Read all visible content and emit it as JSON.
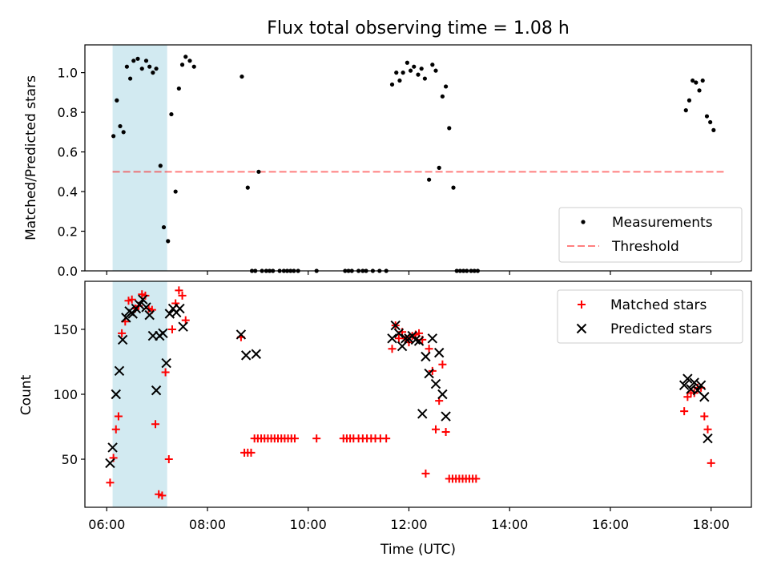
{
  "chart_data": [
    {
      "type": "scatter",
      "title": "Flux total observing time = 1.08 h",
      "xlabel": "",
      "ylabel": "Matched/Predicted stars",
      "xlim": [
        "05:34",
        "18:48"
      ],
      "ylim": [
        0,
        1.14
      ],
      "yticks": [
        "0.0",
        "0.2",
        "0.4",
        "0.6",
        "0.8",
        "1.0"
      ],
      "grid": false,
      "legend_position": "lower-right",
      "highlight_span": {
        "x": [
          "06:07",
          "07:12"
        ],
        "color": "#add8e6"
      },
      "threshold": {
        "name": "Threshold",
        "y": 0.5,
        "x": [
          "06:07",
          "18:15"
        ],
        "color": "#ff0000",
        "style": "dashed"
      },
      "series": [
        {
          "name": "Measurements",
          "color": "#000000",
          "marker": "dot",
          "points": [
            [
              "06:08",
              0.68
            ],
            [
              "06:12",
              0.86
            ],
            [
              "06:16",
              0.73
            ],
            [
              "06:20",
              0.7
            ],
            [
              "06:24",
              1.03
            ],
            [
              "06:28",
              0.97
            ],
            [
              "06:32",
              1.06
            ],
            [
              "06:37",
              1.07
            ],
            [
              "06:42",
              1.02
            ],
            [
              "06:47",
              1.06
            ],
            [
              "06:51",
              1.03
            ],
            [
              "06:55",
              1.0
            ],
            [
              "06:59",
              1.02
            ],
            [
              "07:04",
              0.53
            ],
            [
              "07:08",
              0.22
            ],
            [
              "07:13",
              0.15
            ],
            [
              "07:17",
              0.79
            ],
            [
              "07:22",
              0.4
            ],
            [
              "07:26",
              0.92
            ],
            [
              "07:30",
              1.04
            ],
            [
              "07:34",
              1.08
            ],
            [
              "07:39",
              1.06
            ],
            [
              "07:44",
              1.03
            ],
            [
              "08:41",
              0.98
            ],
            [
              "08:48",
              0.42
            ],
            [
              "08:53",
              0.0
            ],
            [
              "08:57",
              0.0
            ],
            [
              "09:01",
              0.5
            ],
            [
              "09:05",
              0.0
            ],
            [
              "09:10",
              0.0
            ],
            [
              "09:14",
              0.0
            ],
            [
              "09:18",
              0.0
            ],
            [
              "09:26",
              0.0
            ],
            [
              "09:31",
              0.0
            ],
            [
              "09:35",
              0.0
            ],
            [
              "09:39",
              0.0
            ],
            [
              "09:43",
              0.0
            ],
            [
              "09:48",
              0.0
            ],
            [
              "10:10",
              0.0
            ],
            [
              "10:44",
              0.0
            ],
            [
              "10:48",
              0.0
            ],
            [
              "10:52",
              0.0
            ],
            [
              "11:00",
              0.0
            ],
            [
              "11:05",
              0.0
            ],
            [
              "11:09",
              0.0
            ],
            [
              "11:17",
              0.0
            ],
            [
              "11:25",
              0.0
            ],
            [
              "11:33",
              0.0
            ],
            [
              "11:40",
              0.94
            ],
            [
              "11:45",
              1.0
            ],
            [
              "11:49",
              0.96
            ],
            [
              "11:53",
              1.0
            ],
            [
              "11:58",
              1.05
            ],
            [
              "12:02",
              1.01
            ],
            [
              "12:06",
              1.03
            ],
            [
              "12:11",
              0.99
            ],
            [
              "12:15",
              1.02
            ],
            [
              "12:19",
              0.97
            ],
            [
              "12:24",
              0.46
            ],
            [
              "12:28",
              1.04
            ],
            [
              "12:32",
              1.01
            ],
            [
              "12:36",
              0.52
            ],
            [
              "12:40",
              0.88
            ],
            [
              "12:44",
              0.93
            ],
            [
              "12:48",
              0.72
            ],
            [
              "12:53",
              0.42
            ],
            [
              "12:57",
              0.0
            ],
            [
              "13:01",
              0.0
            ],
            [
              "13:05",
              0.0
            ],
            [
              "13:09",
              0.0
            ],
            [
              "13:14",
              0.0
            ],
            [
              "13:18",
              0.0
            ],
            [
              "13:22",
              0.0
            ],
            [
              "17:30",
              0.81
            ],
            [
              "17:34",
              0.86
            ],
            [
              "17:38",
              0.96
            ],
            [
              "17:42",
              0.95
            ],
            [
              "17:46",
              0.91
            ],
            [
              "17:50",
              0.96
            ],
            [
              "17:55",
              0.78
            ],
            [
              "17:59",
              0.75
            ],
            [
              "18:03",
              0.71
            ]
          ]
        }
      ],
      "legend": [
        "Measurements",
        "Threshold"
      ]
    },
    {
      "type": "scatter",
      "title": "",
      "xlabel": "Time (UTC)",
      "ylabel": "Count",
      "xlim": [
        "05:34",
        "18:48"
      ],
      "ylim": [
        13,
        187
      ],
      "xticks": [
        "06:00",
        "08:00",
        "10:00",
        "12:00",
        "14:00",
        "16:00",
        "18:00"
      ],
      "yticks": [
        "50",
        "100",
        "150"
      ],
      "grid": false,
      "legend_position": "top-right",
      "highlight_span": {
        "x": [
          "06:07",
          "07:12"
        ],
        "color": "#add8e6"
      },
      "series": [
        {
          "name": "Matched stars",
          "color": "#ff0000",
          "marker": "plus",
          "points": [
            [
              "06:04",
              32
            ],
            [
              "06:08",
              51
            ],
            [
              "06:11",
              73
            ],
            [
              "06:14",
              83
            ],
            [
              "06:18",
              147
            ],
            [
              "06:22",
              156
            ],
            [
              "06:26",
              172
            ],
            [
              "06:30",
              173
            ],
            [
              "06:34",
              166
            ],
            [
              "06:38",
              168
            ],
            [
              "06:42",
              177
            ],
            [
              "06:46",
              176
            ],
            [
              "06:50",
              166
            ],
            [
              "06:54",
              165
            ],
            [
              "06:58",
              77
            ],
            [
              "07:02",
              23
            ],
            [
              "07:06",
              22
            ],
            [
              "07:10",
              117
            ],
            [
              "07:14",
              50
            ],
            [
              "07:18",
              150
            ],
            [
              "07:22",
              170
            ],
            [
              "07:26",
              180
            ],
            [
              "07:30",
              176
            ],
            [
              "07:34",
              157
            ],
            [
              "08:40",
              144
            ],
            [
              "08:44",
              55
            ],
            [
              "08:48",
              55
            ],
            [
              "08:52",
              55
            ],
            [
              "08:56",
              66
            ],
            [
              "09:00",
              66
            ],
            [
              "09:04",
              66
            ],
            [
              "09:08",
              66
            ],
            [
              "09:12",
              66
            ],
            [
              "09:16",
              66
            ],
            [
              "09:20",
              66
            ],
            [
              "09:24",
              66
            ],
            [
              "09:28",
              66
            ],
            [
              "09:32",
              66
            ],
            [
              "09:36",
              66
            ],
            [
              "09:40",
              66
            ],
            [
              "09:44",
              66
            ],
            [
              "10:10",
              66
            ],
            [
              "10:42",
              66
            ],
            [
              "10:46",
              66
            ],
            [
              "10:50",
              66
            ],
            [
              "10:54",
              66
            ],
            [
              "11:00",
              66
            ],
            [
              "11:05",
              66
            ],
            [
              "11:10",
              66
            ],
            [
              "11:15",
              66
            ],
            [
              "11:20",
              66
            ],
            [
              "11:26",
              66
            ],
            [
              "11:33",
              66
            ],
            [
              "11:40",
              135
            ],
            [
              "11:44",
              153
            ],
            [
              "11:48",
              143
            ],
            [
              "11:52",
              148
            ],
            [
              "11:56",
              143
            ],
            [
              "12:00",
              140
            ],
            [
              "12:04",
              145
            ],
            [
              "12:08",
              146
            ],
            [
              "12:12",
              147
            ],
            [
              "12:16",
              142
            ],
            [
              "12:20",
              39
            ],
            [
              "12:24",
              135
            ],
            [
              "12:28",
              118
            ],
            [
              "12:32",
              73
            ],
            [
              "12:36",
              95
            ],
            [
              "12:40",
              123
            ],
            [
              "12:44",
              71
            ],
            [
              "12:48",
              35
            ],
            [
              "12:52",
              35
            ],
            [
              "12:56",
              35
            ],
            [
              "13:00",
              35
            ],
            [
              "13:04",
              35
            ],
            [
              "13:08",
              35
            ],
            [
              "13:12",
              35
            ],
            [
              "13:16",
              35
            ],
            [
              "13:20",
              35
            ],
            [
              "17:28",
              87
            ],
            [
              "17:32",
              98
            ],
            [
              "17:36",
              101
            ],
            [
              "17:40",
              101
            ],
            [
              "17:44",
              105
            ],
            [
              "17:48",
              105
            ],
            [
              "17:52",
              83
            ],
            [
              "17:56",
              73
            ],
            [
              "18:00",
              47
            ]
          ]
        },
        {
          "name": "Predicted stars",
          "color": "#000000",
          "marker": "x",
          "points": [
            [
              "06:04",
              47
            ],
            [
              "06:07",
              59
            ],
            [
              "06:11",
              100
            ],
            [
              "06:15",
              118
            ],
            [
              "06:19",
              142
            ],
            [
              "06:23",
              159
            ],
            [
              "06:27",
              164
            ],
            [
              "06:31",
              162
            ],
            [
              "06:35",
              166
            ],
            [
              "06:39",
              169
            ],
            [
              "06:43",
              173
            ],
            [
              "06:47",
              167
            ],
            [
              "06:51",
              161
            ],
            [
              "06:55",
              145
            ],
            [
              "06:59",
              103
            ],
            [
              "07:03",
              145
            ],
            [
              "07:07",
              147
            ],
            [
              "07:11",
              124
            ],
            [
              "07:15",
              162
            ],
            [
              "07:19",
              166
            ],
            [
              "07:23",
              163
            ],
            [
              "07:27",
              166
            ],
            [
              "07:31",
              152
            ],
            [
              "08:40",
              146
            ],
            [
              "08:46",
              130
            ],
            [
              "08:58",
              131
            ],
            [
              "11:40",
              143
            ],
            [
              "11:44",
              153
            ],
            [
              "11:48",
              147
            ],
            [
              "11:52",
              137
            ],
            [
              "11:56",
              143
            ],
            [
              "12:00",
              143
            ],
            [
              "12:04",
              145
            ],
            [
              "12:08",
              142
            ],
            [
              "12:12",
              141
            ],
            [
              "12:16",
              85
            ],
            [
              "12:20",
              129
            ],
            [
              "12:24",
              116
            ],
            [
              "12:28",
              143
            ],
            [
              "12:32",
              108
            ],
            [
              "12:36",
              132
            ],
            [
              "12:40",
              100
            ],
            [
              "12:44",
              83
            ],
            [
              "17:28",
              107
            ],
            [
              "17:32",
              112
            ],
            [
              "17:36",
              104
            ],
            [
              "17:40",
              109
            ],
            [
              "17:44",
              103
            ],
            [
              "17:48",
              107
            ],
            [
              "17:52",
              98
            ],
            [
              "17:56",
              66
            ]
          ]
        }
      ],
      "legend": [
        "Matched stars",
        "Predicted stars"
      ]
    }
  ]
}
